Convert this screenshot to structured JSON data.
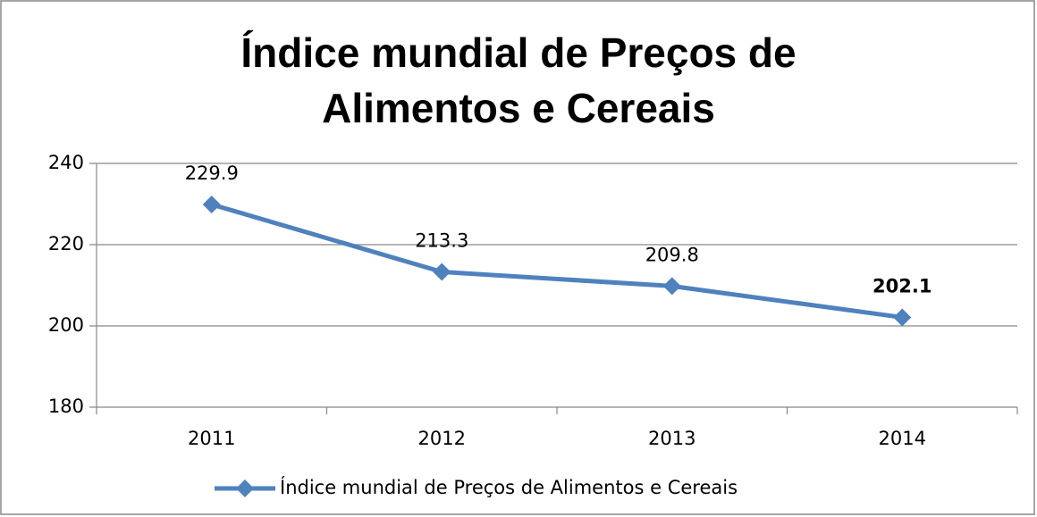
{
  "chart_data": {
    "type": "line",
    "title": "Índice mundial de Preços de Alimentos e Cereais",
    "categories": [
      "2011",
      "2012",
      "2013",
      "2014"
    ],
    "series": [
      {
        "name": "Índice mundial de Preços de Alimentos e Cereais",
        "color": "#4f81bd",
        "values": [
          229.9,
          213.3,
          209.8,
          202.1
        ]
      }
    ],
    "label_bold": [
      false,
      false,
      false,
      true
    ],
    "ylim": [
      180,
      240
    ],
    "yticks": [
      180,
      200,
      220,
      240
    ],
    "grid": true,
    "legend": "bottom"
  }
}
